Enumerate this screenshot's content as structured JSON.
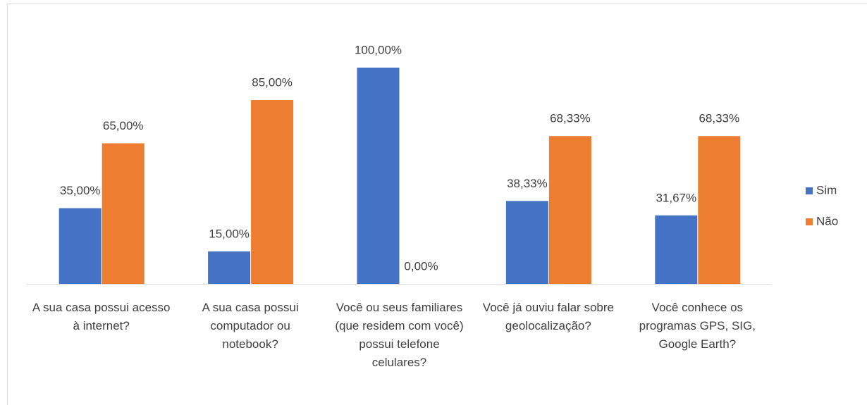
{
  "chart_data": {
    "type": "bar",
    "categories": [
      "A sua casa possui acesso à internet?",
      "A sua casa possui computador ou notebook?",
      "Você ou seus familiares (que residem com você) possui telefone celulares?",
      "Você já ouviu falar sobre geolocalização?",
      "Você conhece os programas GPS, SIG, Google Earth?"
    ],
    "series": [
      {
        "name": "Sim",
        "color": "#4472c4",
        "values": [
          35,
          15,
          100,
          38.33,
          31.67
        ],
        "value_labels": [
          "35,00%",
          "15,00%",
          "100,00%",
          "38,33%",
          "31,67%"
        ]
      },
      {
        "name": "Não",
        "color": "#ed7d31",
        "values": [
          65,
          85,
          0,
          68.33,
          68.33
        ],
        "value_labels": [
          "65,00%",
          "85,00%",
          "0,00%",
          "68,33%",
          "68,33%"
        ]
      }
    ],
    "legend": "right",
    "grid": false
  }
}
